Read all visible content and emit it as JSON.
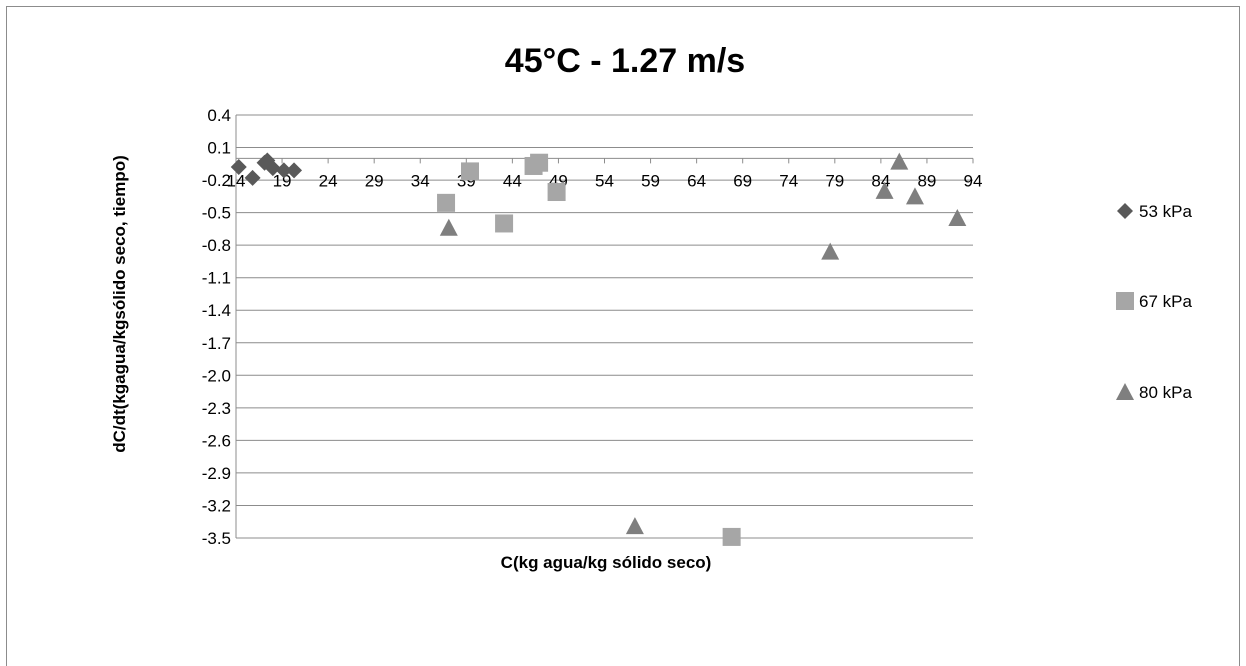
{
  "chart_data": {
    "type": "scatter",
    "title": "45°C - 1.27 m/s",
    "xlabel": "C(kg agua/kg sólido seco)",
    "ylabel": "dC/dt(kgagua/kgsólido seco, tiempo)",
    "xlim": [
      14,
      94
    ],
    "ylim": [
      -3.5,
      0.4
    ],
    "x_ticks": [
      14,
      19,
      24,
      29,
      34,
      39,
      44,
      49,
      54,
      59,
      64,
      69,
      74,
      79,
      84,
      89,
      94
    ],
    "y_ticks": [
      0.4,
      0.1,
      -0.2,
      -0.5,
      -0.8,
      -1.1,
      -1.4,
      -1.7,
      -2.0,
      -2.3,
      -2.6,
      -2.9,
      -3.2,
      -3.5
    ],
    "y_tick_labels": [
      "0.4",
      "0.1",
      "-0.2",
      "-0.5",
      "-0.8",
      "-1.1",
      "-1.4",
      "-1.7",
      "-2.0",
      "-2.3",
      "-2.6",
      "-2.9",
      "-3.2",
      "-3.5"
    ],
    "grid": "horizontal",
    "legend_position": "right",
    "series": [
      {
        "name": "53 kPa",
        "marker": "diamond",
        "color": "#595959",
        "points": [
          {
            "x": 14.3,
            "y": -0.08
          },
          {
            "x": 15.8,
            "y": -0.18
          },
          {
            "x": 17.1,
            "y": -0.04
          },
          {
            "x": 17.4,
            "y": -0.02
          },
          {
            "x": 18.0,
            "y": -0.09
          },
          {
            "x": 19.2,
            "y": -0.11
          },
          {
            "x": 20.3,
            "y": -0.11
          }
        ]
      },
      {
        "name": "67 kPa",
        "marker": "square",
        "color": "#a6a6a6",
        "points": [
          {
            "x": 36.8,
            "y": -0.41
          },
          {
            "x": 39.4,
            "y": -0.12
          },
          {
            "x": 43.1,
            "y": -0.6
          },
          {
            "x": 46.3,
            "y": -0.07
          },
          {
            "x": 46.9,
            "y": -0.04
          },
          {
            "x": 48.8,
            "y": -0.31
          },
          {
            "x": 67.8,
            "y": -3.49
          }
        ]
      },
      {
        "name": "80 kPa",
        "marker": "triangle",
        "color": "#7f7f7f",
        "points": [
          {
            "x": 37.1,
            "y": -0.64
          },
          {
            "x": 57.3,
            "y": -3.39
          },
          {
            "x": 78.5,
            "y": -0.86
          },
          {
            "x": 84.4,
            "y": -0.3
          },
          {
            "x": 86.0,
            "y": -0.03
          },
          {
            "x": 87.7,
            "y": -0.35
          },
          {
            "x": 92.3,
            "y": -0.55
          }
        ]
      }
    ]
  }
}
